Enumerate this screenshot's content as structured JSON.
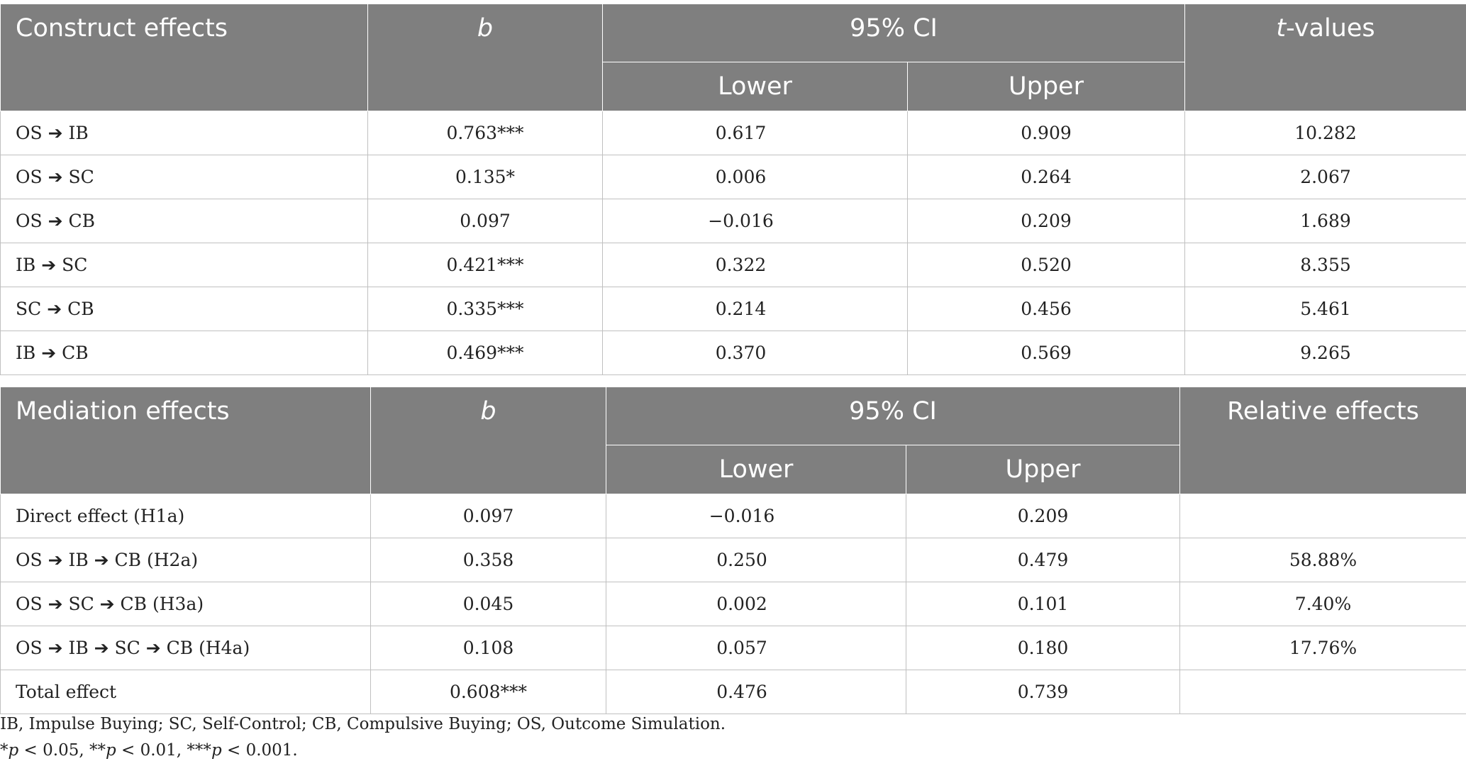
{
  "construct_table": {
    "header": {
      "col1": "Construct effects",
      "col2": "b",
      "col3": "95% CI",
      "col3_lower": "Lower",
      "col3_upper": "Upper",
      "col4_italic": "t",
      "col4_rest": "-values"
    },
    "rows": [
      {
        "label": "OS ➔ IB",
        "b": "0.763***",
        "lower": "0.617",
        "upper": "0.909",
        "t": "10.282"
      },
      {
        "label": "OS ➔ SC",
        "b": "0.135*",
        "lower": "0.006",
        "upper": "0.264",
        "t": "2.067"
      },
      {
        "label": "OS ➔ CB",
        "b": "0.097",
        "lower": "−0.016",
        "upper": "0.209",
        "t": "1.689"
      },
      {
        "label": "IB ➔ SC",
        "b": "0.421***",
        "lower": "0.322",
        "upper": "0.520",
        "t": "8.355"
      },
      {
        "label": "SC ➔ CB",
        "b": "0.335***",
        "lower": "0.214",
        "upper": "0.456",
        "t": "5.461"
      },
      {
        "label": "IB ➔ CB",
        "b": "0.469***",
        "lower": "0.370",
        "upper": "0.569",
        "t": "9.265"
      }
    ]
  },
  "mediation_table": {
    "header": {
      "col1": "Mediation effects",
      "col2": "b",
      "col3": "95% CI",
      "col3_lower": "Lower",
      "col3_upper": "Upper",
      "col4": "Relative effects"
    },
    "rows": [
      {
        "label": "Direct effect (H1a)",
        "b": "0.097",
        "lower": "−0.016",
        "upper": "0.209",
        "rel": ""
      },
      {
        "label": "OS ➔ IB ➔ CB (H2a)",
        "b": "0.358",
        "lower": "0.250",
        "upper": "0.479",
        "rel": "58.88%"
      },
      {
        "label": "OS ➔ SC ➔ CB (H3a)",
        "b": "0.045",
        "lower": "0.002",
        "upper": "0.101",
        "rel": "7.40%"
      },
      {
        "label": "OS ➔ IB ➔ SC ➔ CB (H4a)",
        "b": "0.108",
        "lower": "0.057",
        "upper": "0.180",
        "rel": "17.76%"
      },
      {
        "label": "Total effect",
        "b": "0.608***",
        "lower": "0.476",
        "upper": "0.739",
        "rel": ""
      }
    ]
  },
  "notes": {
    "abbreviations": "IB, Impulse Buying; SC, Self-Control; CB, Compulsive Buying; OS, Outcome Simulation.",
    "sig_1": "*",
    "sig_2": " < 0.05, **",
    "sig_3": " < 0.01, ***",
    "sig_4": " < 0.001.",
    "p_symbol": "p"
  }
}
